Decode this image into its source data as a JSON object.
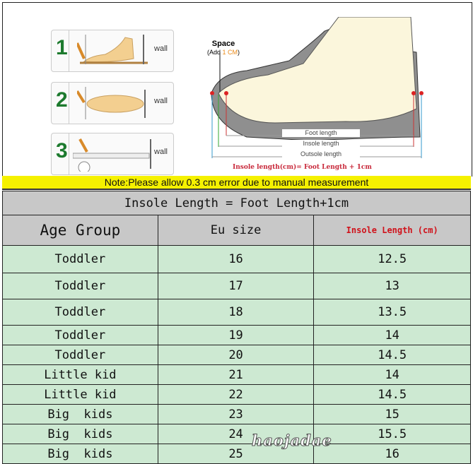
{
  "illustration": {
    "steps": [
      {
        "number": "1",
        "wall": "wall"
      },
      {
        "number": "2",
        "wall": "wall"
      },
      {
        "number": "3",
        "wall": "wall"
      }
    ],
    "space_label": "Space",
    "space_add_prefix": "(Add ",
    "space_add_value": "1 CM",
    "space_add_suffix": ")",
    "foot_length": "Foot length",
    "insole_length": "Insole length",
    "outsole_length": "Outsole length",
    "formula": "Insole length(cm)= Foot Length + 1cm"
  },
  "note": "Note:Please allow 0.3 cm error due to manual measurement",
  "table": {
    "title": "Insole Length = Foot Length+1cm",
    "headers": [
      "Age Group",
      "Eu size",
      "Insole Length (cm)"
    ],
    "rows": [
      [
        "Toddler",
        "16",
        "12.5"
      ],
      [
        "Toddler",
        "17",
        "13"
      ],
      [
        "Toddler",
        "18",
        "13.5"
      ],
      [
        "Toddler",
        "19",
        "14"
      ],
      [
        "Toddler",
        "20",
        "14.5"
      ],
      [
        "Little kid",
        "21",
        "14"
      ],
      [
        "Little kid",
        "22",
        "14.5"
      ],
      [
        "Big  kids",
        "23",
        "15"
      ],
      [
        "Big  kids",
        "24",
        "15.5"
      ],
      [
        "Big  kids",
        "25",
        "16"
      ]
    ]
  },
  "watermark": "haojadae",
  "colors": {
    "note_bg": "#f5f100",
    "header_bg": "#c8c8c8",
    "row_bg": "#cde9d2",
    "accent_red": "#d0121b"
  }
}
